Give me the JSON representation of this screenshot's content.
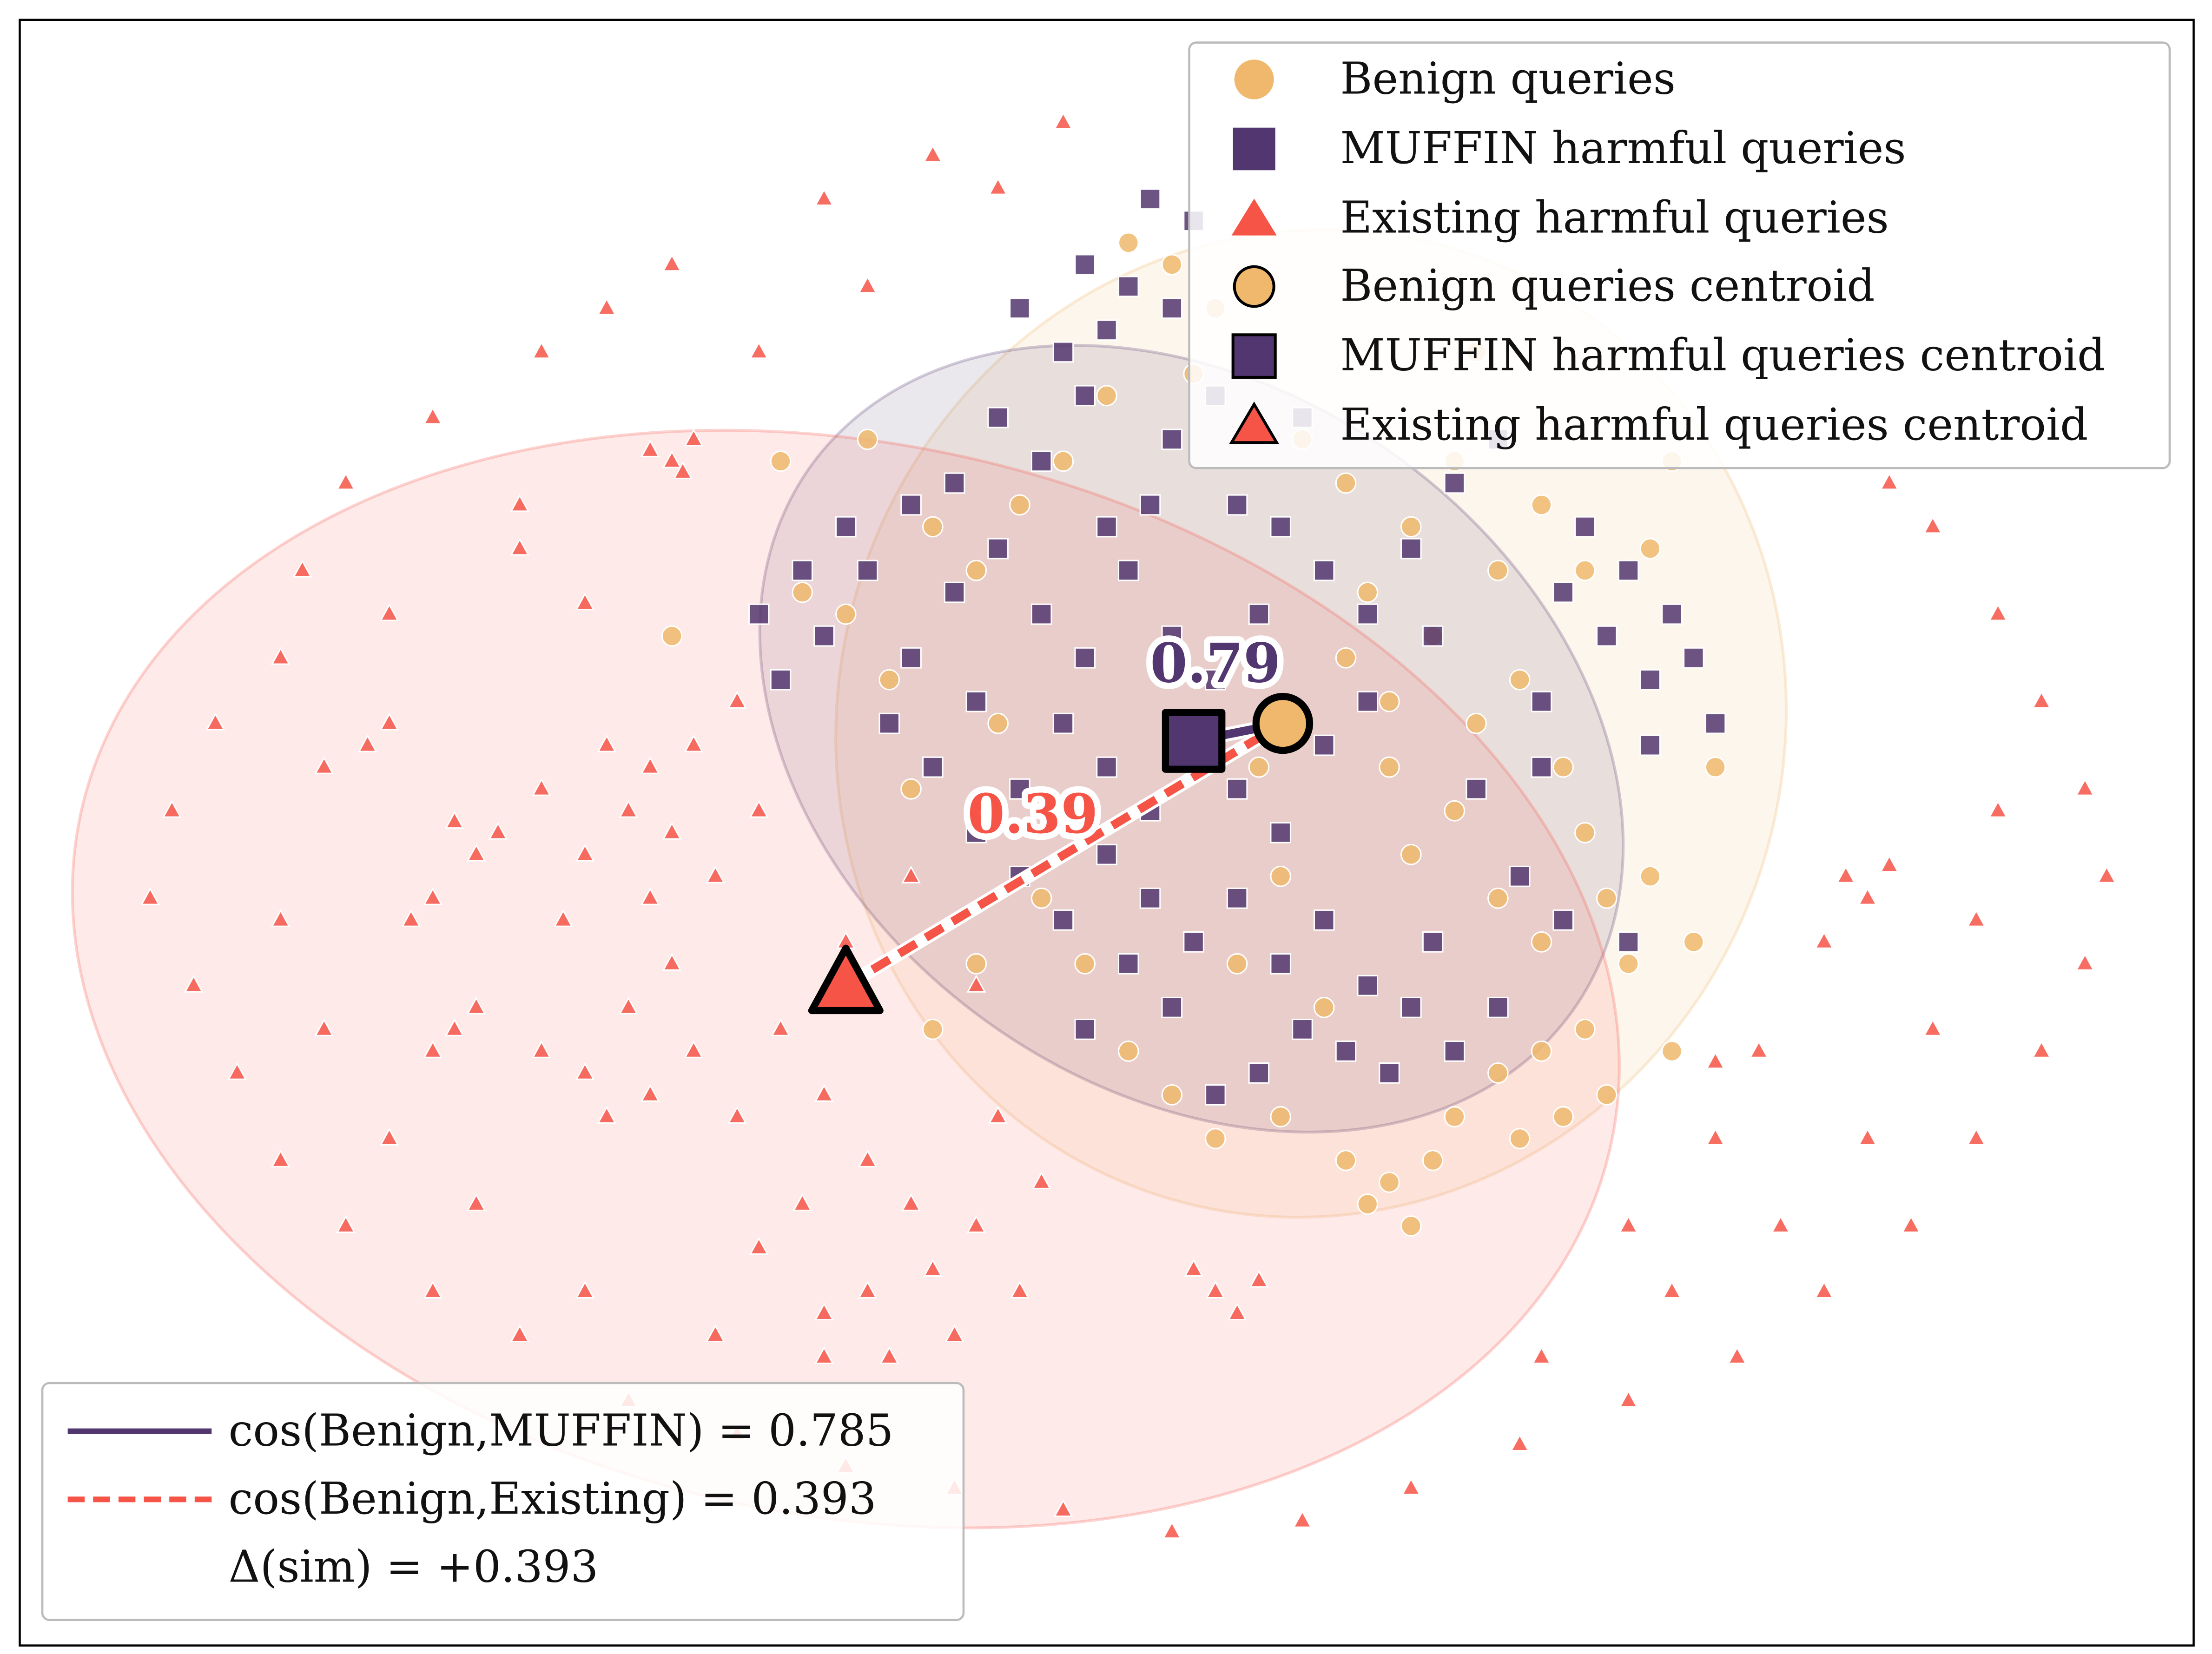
{
  "chart_data": {
    "type": "scatter",
    "title": "",
    "xlabel": "",
    "ylabel": "",
    "axes_ticks": "none",
    "grid": false,
    "xlim": [
      -50,
      50
    ],
    "ylim": [
      -37.2,
      37.2
    ],
    "colors": {
      "benign": "#efb86c",
      "muffin": "#52366f",
      "existing": "#f65446"
    },
    "series": [
      {
        "name": "Benign queries",
        "marker": "circle",
        "color": "#efb86c",
        "points": [
          [
            11,
            8
          ],
          [
            13,
            6
          ],
          [
            15,
            9
          ],
          [
            17,
            5
          ],
          [
            19,
            7
          ],
          [
            21,
            3
          ],
          [
            16,
            1
          ],
          [
            14,
            -1
          ],
          [
            18,
            -3
          ],
          [
            20,
            -5
          ],
          [
            22,
            0
          ],
          [
            23,
            -3
          ],
          [
            13,
            3
          ],
          [
            12,
            11
          ],
          [
            14,
            14
          ],
          [
            16,
            17
          ],
          [
            11,
            16
          ],
          [
            9,
            18
          ],
          [
            7,
            22
          ],
          [
            5,
            24
          ],
          [
            3,
            26
          ],
          [
            1,
            27
          ],
          [
            4,
            21
          ],
          [
            0,
            20
          ],
          [
            -2,
            17
          ],
          [
            -4,
            15
          ],
          [
            -6,
            12
          ],
          [
            -8,
            14
          ],
          [
            -12,
            10
          ],
          [
            -14,
            11
          ],
          [
            -10,
            7
          ],
          [
            -9,
            2
          ],
          [
            -5,
            5
          ],
          [
            -3,
            -3
          ],
          [
            -1,
            -6
          ],
          [
            1,
            -10
          ],
          [
            3,
            -12
          ],
          [
            5,
            -14
          ],
          [
            8,
            -13
          ],
          [
            11,
            -15
          ],
          [
            13,
            -16
          ],
          [
            15,
            -15
          ],
          [
            14,
            -18
          ],
          [
            12,
            -17
          ],
          [
            16,
            -13
          ],
          [
            18,
            -11
          ],
          [
            20,
            -10
          ],
          [
            22,
            -9
          ],
          [
            21,
            -13
          ],
          [
            19,
            -14
          ],
          [
            24,
            -6
          ],
          [
            25,
            -2
          ],
          [
            26,
            -10
          ],
          [
            23,
            -12
          ],
          [
            20,
            15
          ],
          [
            22,
            12
          ],
          [
            18,
            12
          ],
          [
            25,
            13
          ],
          [
            26,
            17
          ],
          [
            8,
            -2
          ],
          [
            6,
            -6
          ],
          [
            10,
            -8
          ],
          [
            -6,
            -6
          ],
          [
            -8,
            -9
          ],
          [
            9,
            5
          ],
          [
            7,
            3
          ],
          [
            17,
            22
          ],
          [
            27,
            -5
          ],
          [
            28,
            3
          ],
          [
            -11,
            18
          ],
          [
            -15,
            17
          ],
          [
            -20,
            9
          ]
        ]
      },
      {
        "name": "MUFFIN harmful queries",
        "marker": "square",
        "color": "#52366f",
        "points": [
          [
            -13,
            9
          ],
          [
            -11,
            12
          ],
          [
            -9,
            8
          ],
          [
            -7,
            11
          ],
          [
            -5,
            13
          ],
          [
            -3,
            10
          ],
          [
            -1,
            8
          ],
          [
            1,
            12
          ],
          [
            3,
            9
          ],
          [
            5,
            7
          ],
          [
            7,
            10
          ],
          [
            -10,
            5
          ],
          [
            -8,
            3
          ],
          [
            -6,
            6
          ],
          [
            -4,
            2
          ],
          [
            -2,
            5
          ],
          [
            0,
            3
          ],
          [
            2,
            1
          ],
          [
            4,
            4
          ],
          [
            6,
            2
          ],
          [
            8,
            0
          ],
          [
            -4,
            -2
          ],
          [
            -2,
            -4
          ],
          [
            0,
            -1
          ],
          [
            2,
            -3
          ],
          [
            4,
            -5
          ],
          [
            6,
            -3
          ],
          [
            8,
            -6
          ],
          [
            10,
            -4
          ],
          [
            12,
            -7
          ],
          [
            14,
            -8
          ],
          [
            11,
            -10
          ],
          [
            9,
            -9
          ],
          [
            7,
            -11
          ],
          [
            13,
            -11
          ],
          [
            15,
            -5
          ],
          [
            16,
            -10
          ],
          [
            -9,
            15
          ],
          [
            -7,
            16
          ],
          [
            -5,
            19
          ],
          [
            -3,
            17
          ],
          [
            -1,
            20
          ],
          [
            0,
            23
          ],
          [
            -2,
            22
          ],
          [
            -4,
            24
          ],
          [
            -1,
            26
          ],
          [
            1,
            25
          ],
          [
            3,
            24
          ],
          [
            3,
            18
          ],
          [
            5,
            20
          ],
          [
            6,
            15
          ],
          [
            8,
            14
          ],
          [
            10,
            12
          ],
          [
            12,
            10
          ],
          [
            14,
            13
          ],
          [
            16,
            16
          ],
          [
            18,
            18
          ],
          [
            22,
            14
          ],
          [
            24,
            12
          ],
          [
            26,
            10
          ],
          [
            27,
            8
          ],
          [
            25,
            7
          ],
          [
            28,
            5
          ],
          [
            23,
            9
          ],
          [
            21,
            11
          ],
          [
            25,
            4
          ],
          [
            20,
            6
          ],
          [
            17,
            2
          ],
          [
            19,
            -2
          ],
          [
            21,
            -4
          ],
          [
            18,
            -8
          ],
          [
            -15,
            7
          ],
          [
            -16,
            10
          ],
          [
            -12,
            14
          ],
          [
            3,
            -8
          ],
          [
            1,
            -6
          ],
          [
            -1,
            -9
          ],
          [
            5,
            -12
          ],
          [
            0,
            14
          ],
          [
            2,
            15
          ],
          [
            -6,
            0
          ],
          [
            10,
            4
          ],
          [
            12,
            6
          ],
          [
            15,
            9
          ],
          [
            -14,
            12
          ],
          [
            24,
            -5
          ],
          [
            20,
            3
          ],
          [
            9,
            19
          ],
          [
            4,
            28
          ],
          [
            2,
            29
          ]
        ]
      },
      {
        "name": "Existing harmful queries",
        "marker": "triangle",
        "color": "#f65446",
        "points": [
          [
            -13,
            29
          ],
          [
            -8,
            31
          ],
          [
            -5,
            29.5
          ],
          [
            -2,
            32.5
          ],
          [
            -20,
            26
          ],
          [
            -23,
            24
          ],
          [
            -26,
            22
          ],
          [
            -31,
            19
          ],
          [
            -35,
            16
          ],
          [
            -37,
            12
          ],
          [
            -38,
            8
          ],
          [
            -41,
            5
          ],
          [
            -43,
            1
          ],
          [
            -44,
            -3
          ],
          [
            -42,
            -7
          ],
          [
            -40,
            -11
          ],
          [
            -38,
            -15
          ],
          [
            -35,
            -18
          ],
          [
            -31,
            -21
          ],
          [
            -27,
            -23
          ],
          [
            -22,
            -26
          ],
          [
            -17,
            -27.5
          ],
          [
            -12,
            -29
          ],
          [
            -7,
            -30
          ],
          [
            -2,
            -31
          ],
          [
            3,
            -32
          ],
          [
            9,
            -31.5
          ],
          [
            14,
            -30
          ],
          [
            19,
            -28
          ],
          [
            24,
            -26
          ],
          [
            29,
            -24
          ],
          [
            33,
            -21
          ],
          [
            37,
            -18
          ],
          [
            40,
            -14
          ],
          [
            43,
            -10
          ],
          [
            45,
            -6
          ],
          [
            46,
            -2
          ],
          [
            45,
            2
          ],
          [
            43,
            6
          ],
          [
            41,
            10
          ],
          [
            38,
            14
          ],
          [
            36,
            16
          ],
          [
            -16,
            22
          ],
          [
            -11,
            25
          ],
          [
            -19,
            18
          ],
          [
            -27,
            15
          ],
          [
            -33,
            10
          ],
          [
            -36,
            3
          ],
          [
            -38,
            -4
          ],
          [
            -36,
            -9
          ],
          [
            -33,
            -14
          ],
          [
            -29,
            -17
          ],
          [
            -24,
            -21
          ],
          [
            -18,
            -23
          ],
          [
            -13,
            -24
          ],
          [
            20,
            -24
          ],
          [
            26,
            -21
          ],
          [
            31,
            -18
          ],
          [
            35,
            -14
          ],
          [
            38,
            -9
          ],
          [
            40,
            -4
          ],
          [
            41,
            1
          ],
          [
            30,
            -10
          ],
          [
            28,
            -14
          ],
          [
            24,
            -18
          ],
          [
            33,
            -5
          ],
          [
            -21,
            3
          ],
          [
            -22,
            1
          ],
          [
            -20,
            0
          ],
          [
            -23,
            4
          ],
          [
            -19,
            4
          ],
          [
            -24,
            -1
          ],
          [
            -18,
            -2
          ],
          [
            -21,
            -3
          ],
          [
            -25,
            -4
          ],
          [
            -17,
            6
          ],
          [
            -26,
            2
          ],
          [
            -16,
            1
          ],
          [
            -20,
            -6
          ],
          [
            -22,
            -8
          ],
          [
            -24,
            -11
          ],
          [
            -21,
            -12
          ],
          [
            -19,
            -10
          ],
          [
            -23,
            -13
          ],
          [
            -26,
            -10
          ],
          [
            -17,
            -13
          ],
          [
            -13,
            -12
          ],
          [
            -11,
            -15
          ],
          [
            -14,
            -17
          ],
          [
            -16,
            -19
          ],
          [
            -9,
            -17
          ],
          [
            -8,
            -20
          ],
          [
            -11,
            -21
          ],
          [
            -13,
            -22
          ],
          [
            -6,
            -18
          ],
          [
            -4,
            -21
          ],
          [
            -7,
            -23
          ],
          [
            -10,
            -24
          ],
          [
            -3,
            -16
          ],
          [
            -5,
            -13
          ],
          [
            -15,
            -9
          ],
          [
            -12,
            -5
          ],
          [
            -28,
            0
          ],
          [
            -29,
            -1
          ],
          [
            -30,
            0.5
          ],
          [
            -33,
            5
          ],
          [
            -34,
            4
          ],
          [
            -32,
            -4
          ],
          [
            -31,
            -3
          ],
          [
            -30,
            -9
          ],
          [
            -31,
            -10
          ],
          [
            -29,
            -8
          ],
          [
            -20,
            17
          ],
          [
            -21,
            17.5
          ],
          [
            -19.5,
            16.5
          ],
          [
            5,
            -21
          ],
          [
            6,
            -22
          ],
          [
            4,
            -20
          ],
          [
            7,
            -20.5
          ],
          [
            34,
            -2
          ],
          [
            35,
            -3
          ],
          [
            36,
            -1.5
          ],
          [
            28,
            -10.5
          ],
          [
            -27,
            13
          ],
          [
            -24,
            10.5
          ],
          [
            -9,
            -2
          ],
          [
            -6,
            -7
          ]
        ]
      }
    ],
    "centroids": [
      {
        "name": "Benign queries centroid",
        "marker": "circle",
        "color": "#efb86c",
        "x": 8.1,
        "y": 5.0
      },
      {
        "name": "MUFFIN harmful queries centroid",
        "marker": "square",
        "color": "#52366f",
        "x": 4.0,
        "y": 4.2
      },
      {
        "name": "Existing harmful queries centroid",
        "marker": "triangle",
        "color": "#f65446",
        "x": -12.0,
        "y": -7.0
      }
    ],
    "ellipses": [
      {
        "series": "Benign queries",
        "color": "#efb86c",
        "cx": 9.4,
        "cy": 5.0,
        "width": 43.5,
        "height": 45.4,
        "angle": -20
      },
      {
        "series": "MUFFIN harmful queries",
        "color": "#52366f",
        "cx": 3.9,
        "cy": 4.3,
        "width": 43,
        "height": 32,
        "angle": -35
      },
      {
        "series": "Existing harmful queries",
        "color": "#f65446",
        "cx": -12.0,
        "cy": -6.7,
        "width": 72,
        "height": 49,
        "angle": -12
      }
    ],
    "annotations": [
      {
        "text": "0.79",
        "color": "#52366f",
        "x": 5.0,
        "y": 7.8
      },
      {
        "text": "0.39",
        "color": "#f65446",
        "x": -3.4,
        "y": 0.9
      }
    ],
    "legend": {
      "placement": "top-right",
      "entries": [
        "Benign queries",
        "MUFFIN harmful queries",
        "Existing harmful queries",
        "Benign queries centroid",
        "MUFFIN harmful queries centroid",
        "Existing harmful queries centroid"
      ]
    },
    "similarity_legend": {
      "placement": "bottom-left",
      "entries": [
        "cos(Benign,MUFFIN) = 0.785",
        "cos(Benign,Existing) = 0.393",
        "Δ(sim) = +0.393"
      ]
    }
  }
}
